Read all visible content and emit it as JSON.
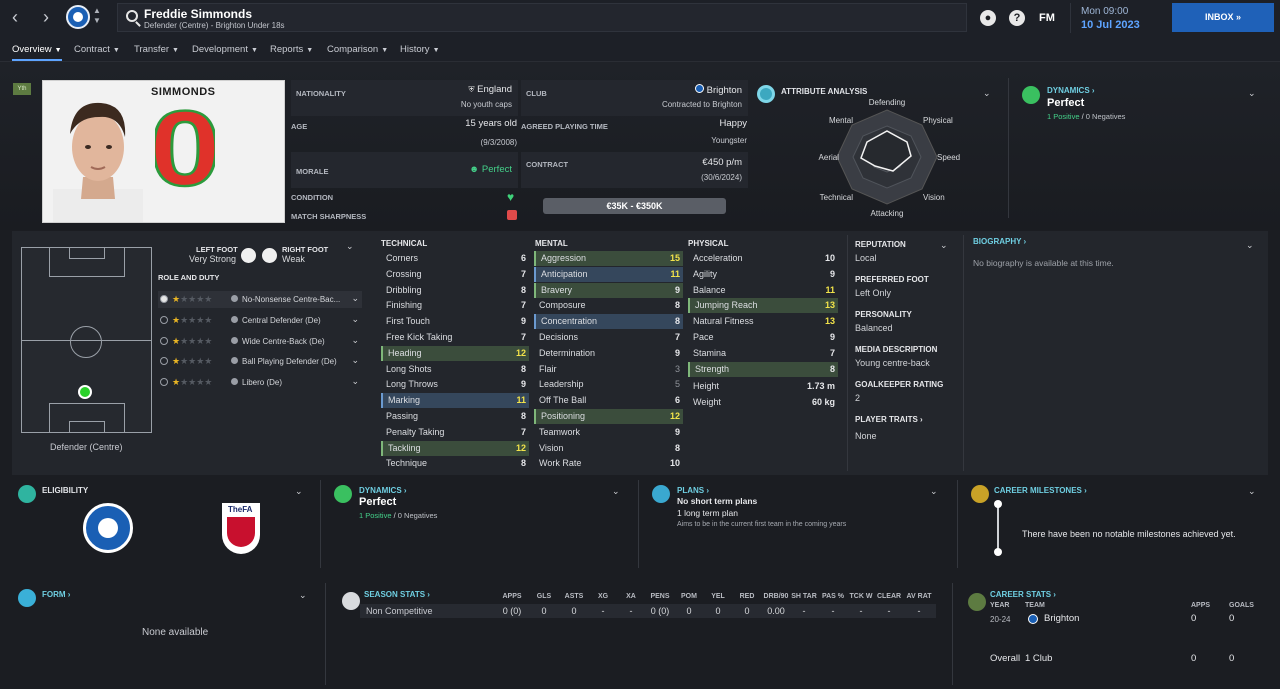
{
  "topbar": {
    "back": "‹",
    "forward": "›",
    "player_name": "Freddie Simmonds",
    "player_sub": "Defender (Centre) - Brighton Under 18s",
    "help": "?",
    "fm": "FM",
    "time": "Mon 09:00",
    "date": "10 Jul 2023",
    "inbox": "INBOX"
  },
  "tabs": [
    "Overview",
    "Contract",
    "Transfer",
    "Development",
    "Reports",
    "Comparison",
    "History"
  ],
  "hero": {
    "rank_badge": "Yth",
    "shirt_name": "SIMMONDS",
    "shirt_number": "0",
    "nationality_label": "NATIONALITY",
    "nationality": "England",
    "youth_caps": "No youth caps",
    "club_label": "CLUB",
    "club": "Brighton",
    "contracted_to": "Contracted to Brighton",
    "age_label": "AGE",
    "age": "15 years old",
    "dob": "(9/3/2008)",
    "agreed_label": "AGREED PLAYING TIME",
    "agreed": "Happy",
    "agreed_sub": "Youngster",
    "morale_label": "MORALE",
    "morale": "Perfect",
    "contract_label": "CONTRACT",
    "contract": "€450 p/m",
    "contract_end": "(30/6/2024)",
    "condition_label": "CONDITION",
    "sharpness_label": "MATCH SHARPNESS",
    "value": "€35K - €350K",
    "attr_analysis": "ATTRIBUTE ANALYSIS",
    "radar_labels": [
      "Defending",
      "Physical",
      "Speed",
      "Vision",
      "Attacking",
      "Technical",
      "Aerial",
      "Mental"
    ],
    "dynamics_label": "DYNAMICS",
    "dynamics": "Perfect",
    "positives": "1 Positive",
    "negatives": "0 Negatives"
  },
  "position": {
    "left_foot_label": "LEFT FOOT",
    "left_foot": "Very Strong",
    "right_foot_label": "RIGHT FOOT",
    "right_foot": "Weak",
    "role_duty": "ROLE AND DUTY",
    "pitch_caption": "Defender (Centre)",
    "roles": [
      "No-Nonsense Centre-Bac...",
      "Central Defender (De)",
      "Wide Centre-Back (De)",
      "Ball Playing Defender (De)",
      "Libero (De)"
    ]
  },
  "technical": {
    "title": "TECHNICAL",
    "rows": [
      [
        "Corners",
        "6"
      ],
      [
        "Crossing",
        "7"
      ],
      [
        "Dribbling",
        "8"
      ],
      [
        "Finishing",
        "7"
      ],
      [
        "First Touch",
        "9"
      ],
      [
        "Free Kick Taking",
        "7"
      ],
      [
        "Heading",
        "12"
      ],
      [
        "Long Shots",
        "8"
      ],
      [
        "Long Throws",
        "9"
      ],
      [
        "Marking",
        "11"
      ],
      [
        "Passing",
        "8"
      ],
      [
        "Penalty Taking",
        "7"
      ],
      [
        "Tackling",
        "12"
      ],
      [
        "Technique",
        "8"
      ]
    ]
  },
  "mental": {
    "title": "MENTAL",
    "rows": [
      [
        "Aggression",
        "15"
      ],
      [
        "Anticipation",
        "11"
      ],
      [
        "Bravery",
        "9"
      ],
      [
        "Composure",
        "8"
      ],
      [
        "Concentration",
        "8"
      ],
      [
        "Decisions",
        "7"
      ],
      [
        "Determination",
        "9"
      ],
      [
        "Flair",
        "3"
      ],
      [
        "Leadership",
        "5"
      ],
      [
        "Off The Ball",
        "6"
      ],
      [
        "Positioning",
        "12"
      ],
      [
        "Teamwork",
        "9"
      ],
      [
        "Vision",
        "8"
      ],
      [
        "Work Rate",
        "10"
      ]
    ]
  },
  "physical": {
    "title": "PHYSICAL",
    "rows": [
      [
        "Acceleration",
        "10"
      ],
      [
        "Agility",
        "9"
      ],
      [
        "Balance",
        "11"
      ],
      [
        "Jumping Reach",
        "13"
      ],
      [
        "Natural Fitness",
        "13"
      ],
      [
        "Pace",
        "9"
      ],
      [
        "Stamina",
        "7"
      ],
      [
        "Strength",
        "8"
      ]
    ],
    "height_label": "Height",
    "height": "1.73 m",
    "weight_label": "Weight",
    "weight": "60 kg"
  },
  "info": {
    "reputation_label": "REPUTATION",
    "reputation": "Local",
    "pref_foot_label": "PREFERRED FOOT",
    "pref_foot": "Left Only",
    "personality_label": "PERSONALITY",
    "personality": "Balanced",
    "media_label": "MEDIA DESCRIPTION",
    "media": "Young centre-back",
    "gk_label": "GOALKEEPER RATING",
    "gk": "2",
    "traits_label": "PLAYER TRAITS",
    "traits": "None",
    "bio_label": "BIOGRAPHY",
    "bio": "No biography is available at this time."
  },
  "bottom": {
    "eligibility": "ELIGIBILITY",
    "fa_label": "TheFA",
    "dynamics_label": "DYNAMICS",
    "dynamics": "Perfect",
    "positives": "1 Positive",
    "negatives": "0 Negatives",
    "plans_label": "PLANS",
    "plans_short": "No short term plans",
    "plans_long": "1 long term plan",
    "plans_desc": "Aims to be in the current first team in the coming years",
    "milestones_label": "CAREER MILESTONES",
    "milestones": "There have been no notable milestones achieved yet.",
    "form_label": "FORM",
    "form": "None available",
    "season_label": "SEASON STATS",
    "season_row": "Non Competitive",
    "stat_heads": [
      "APPS",
      "GLS",
      "ASTS",
      "XG",
      "XA",
      "PENS",
      "POM",
      "YEL",
      "RED",
      "DRB/90",
      "SH TAR",
      "PAS %",
      "TCK W",
      "CLEAR",
      "AV RAT"
    ],
    "stat_vals": [
      "0 (0)",
      "0",
      "0",
      "-",
      "-",
      "0 (0)",
      "0",
      "0",
      "0",
      "0.00",
      "-",
      "-",
      "-",
      "-",
      "-"
    ],
    "career_label": "CAREER STATS",
    "career_year_head": "YEAR",
    "career_team_head": "TEAM",
    "career_apps_head": "APPS",
    "career_goals_head": "GOALS",
    "career_year": "20-24",
    "career_team": "Brighton",
    "career_apps": "0",
    "career_goals": "0",
    "overall_label": "Overall",
    "overall_clubs": "1 Club",
    "overall_apps": "0",
    "overall_goals": "0"
  },
  "colors": {
    "accent": "#5ea4ff",
    "highlight_green": "#3b4d3c",
    "highlight_blue": "#35475c",
    "yellow": "#f2e34a",
    "teal": "#2fb4a0"
  }
}
